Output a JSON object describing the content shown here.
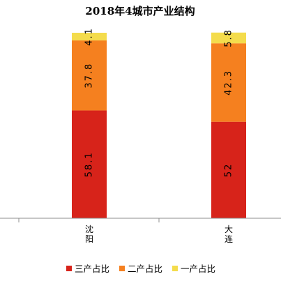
{
  "chart_data": {
    "type": "bar",
    "stacked": true,
    "title": "2018年4城市产业结构",
    "categories": [
      "沈阳",
      "大连"
    ],
    "series": [
      {
        "name": "三产占比",
        "values": [
          58.1,
          52
        ],
        "labels": [
          "58.1",
          "52"
        ],
        "color": "#D7231A"
      },
      {
        "name": "二产占比",
        "values": [
          37.8,
          42.3
        ],
        "labels": [
          "37.8",
          "42.3"
        ],
        "color": "#F5801F"
      },
      {
        "name": "一产占比",
        "values": [
          4.1,
          5.8
        ],
        "labels": [
          "4.1",
          "5.8"
        ],
        "color": "#F4DC4C"
      }
    ],
    "ylim": [
      0,
      100
    ],
    "grid": false,
    "legend_position": "bottom"
  }
}
